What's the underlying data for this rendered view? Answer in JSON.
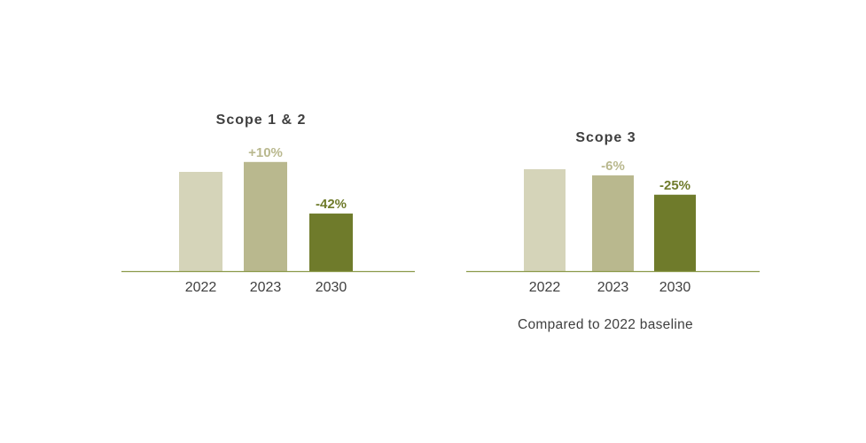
{
  "chart_data": [
    {
      "type": "bar",
      "title": "Scope 1 & 2",
      "categories": [
        "2022",
        "2023",
        "2030"
      ],
      "values": [
        100,
        110,
        58
      ],
      "data_labels": [
        "",
        "+10%",
        "-42%"
      ],
      "colors": [
        "#d5d4b9",
        "#b9b88e",
        "#6f7b2b"
      ],
      "label_colors": [
        "#b9b88e",
        "#b9b88e",
        "#6f7b2b"
      ],
      "ylim": [
        0,
        125
      ],
      "grid": false
    },
    {
      "type": "bar",
      "title": "Scope 3",
      "categories": [
        "2022",
        "2023",
        "2030"
      ],
      "values": [
        100,
        94,
        75
      ],
      "data_labels": [
        "",
        "-6%",
        "-25%"
      ],
      "colors": [
        "#d5d4b9",
        "#b9b88e",
        "#6f7b2b"
      ],
      "label_colors": [
        "#b9b88e",
        "#b9b88e",
        "#6f7b2b"
      ],
      "ylim": [
        0,
        125
      ],
      "grid": false
    }
  ],
  "footnote": "Compared to 2022 baseline",
  "axis_color": "#8c9a4a"
}
